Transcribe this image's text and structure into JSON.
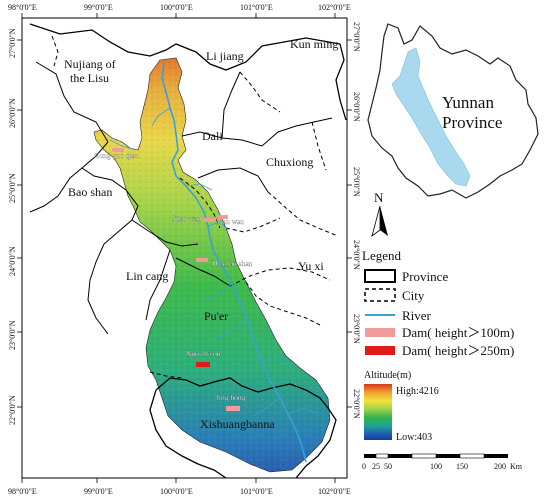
{
  "graticule": {
    "top_labels": [
      "98°0'0\"E",
      "99°0'0\"E",
      "100°0'0\"E",
      "101°0'0\"E",
      "102°0'0\"E"
    ],
    "bottom_labels": [
      "98°0'0\"E",
      "99°0'0\"E",
      "100°0'0\"E",
      "101°0'0\"E",
      "102°0'0\"E"
    ],
    "left_labels": [
      "27°0'0\"N",
      "26°0'0\"N",
      "25°0'0\"N",
      "24°0'0\"N",
      "23°0'0\"N",
      "22°0'0\"N"
    ],
    "right_labels": [
      "27°0'0\"N",
      "26°0'0\"N",
      "25°0'0\"N",
      "24°0'0\"N",
      "23°0'0\"N",
      "22°0'0\"N"
    ]
  },
  "regions": {
    "nujiang": [
      "Nujiang of",
      "the Lisu"
    ],
    "lijiang": "Li jiang",
    "kunming": "Kun ming",
    "dali": "Dali",
    "chuxiong": "Chuxiong",
    "baoshan": "Bao shan",
    "lincang": "Lin cang",
    "yuxi": "Yu xi",
    "puer": "Pu'er",
    "xishuangbanna": "Xishuangbanna"
  },
  "dams": {
    "gongguoqiao": "Gong guo qiao",
    "xiaowan": "Xiao wan",
    "manwan": "Man wan",
    "dachaoshan": "Da chao shan",
    "nuozhadu": "Nuo zha du",
    "jinghong": "Jing hong"
  },
  "inset": {
    "label": [
      "Yunnan",
      "Province"
    ],
    "colors": {
      "province_fill": "#ffffff",
      "basin_fill": "#a9d9ef"
    }
  },
  "north_arrow": {
    "letter": "N"
  },
  "legend": {
    "title": "Legend",
    "items": [
      {
        "label": "Province",
        "symbol": "province-boundary"
      },
      {
        "label": "City",
        "symbol": "city-boundary"
      },
      {
        "label": "River",
        "symbol": "river-line"
      },
      {
        "label": "Dam( height＞100m)",
        "symbol": "dam-medium"
      },
      {
        "label": "Dam( height＞250m)",
        "symbol": "dam-large"
      }
    ],
    "colors": {
      "river": "#3aa0d8",
      "dam_medium": "#f29b9b",
      "dam_large": "#e01919"
    }
  },
  "altitude": {
    "title": "Altitude(m)",
    "high": "High:4216",
    "low": "Low:403",
    "gradient": [
      "#d4351c",
      "#f0a030",
      "#f2e23a",
      "#9fd24a",
      "#2fb54a",
      "#1ea39a",
      "#1f62b0",
      "#193a96"
    ]
  },
  "scale_bar": {
    "ticks": [
      "0",
      "25",
      "50",
      "100",
      "150",
      "200"
    ],
    "unit": "Km"
  }
}
